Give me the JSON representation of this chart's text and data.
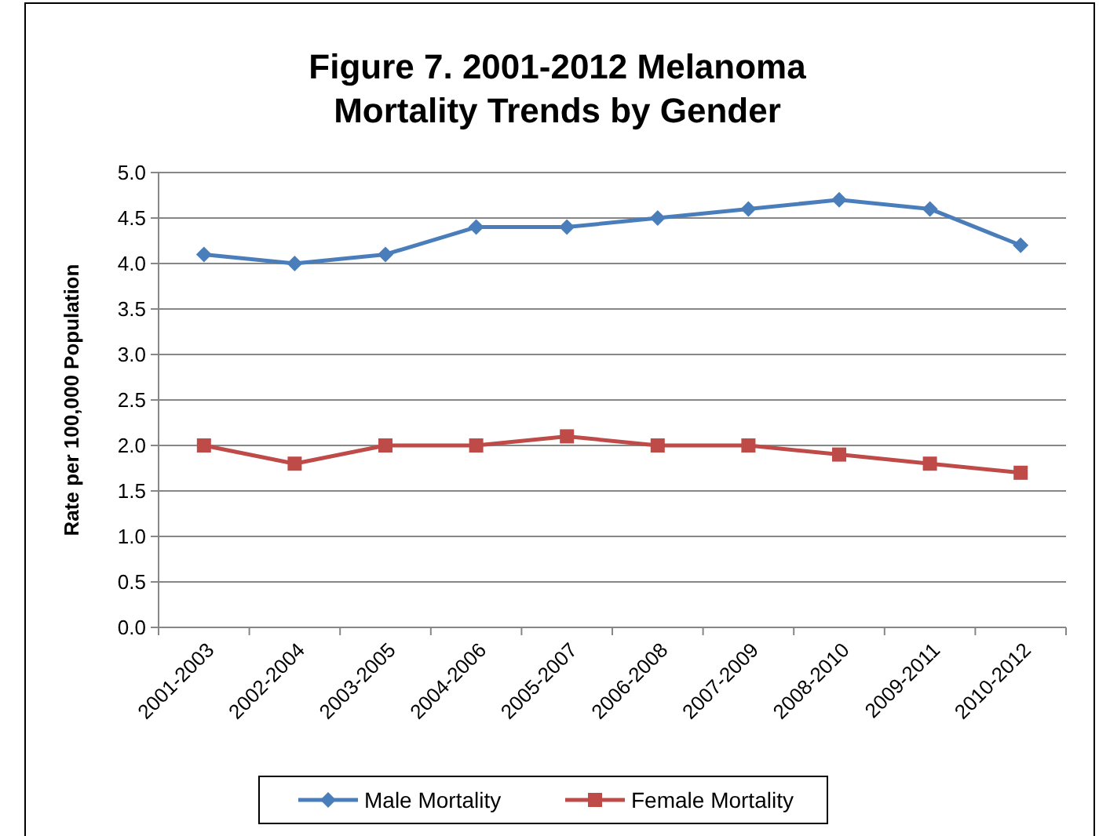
{
  "chart_data": {
    "type": "line",
    "title": "Figure 7.  2001-2012 Melanoma\nMortality Trends by Gender",
    "ylabel": "Rate per 100,000 Population",
    "categories": [
      "2001-2003",
      "2002-2004",
      "2003-2005",
      "2004-2006",
      "2005-2007",
      "2006-2008",
      "2007-2009",
      "2008-2010",
      "2009-2011",
      "2010-2012"
    ],
    "series": [
      {
        "name": "Male Mortality",
        "color": "#4a7ebb",
        "marker": "diamond",
        "values": [
          4.1,
          4.0,
          4.1,
          4.4,
          4.4,
          4.5,
          4.6,
          4.7,
          4.6,
          4.2
        ]
      },
      {
        "name": "Female Mortality",
        "color": "#be4b48",
        "marker": "square",
        "values": [
          2.0,
          1.8,
          2.0,
          2.0,
          2.1,
          2.0,
          2.0,
          1.9,
          1.8,
          1.7
        ]
      }
    ],
    "ylim": [
      0,
      5
    ],
    "yticks": [
      {
        "value": 0,
        "label": "0.0"
      },
      {
        "value": 0.5,
        "label": "0.5"
      },
      {
        "value": 1,
        "label": "1.0"
      },
      {
        "value": 1.5,
        "label": "1.5"
      },
      {
        "value": 2,
        "label": "2.0"
      },
      {
        "value": 2.5,
        "label": "2.5"
      },
      {
        "value": 3,
        "label": "3.0"
      },
      {
        "value": 3.5,
        "label": "3.5"
      },
      {
        "value": 4,
        "label": "4.0"
      },
      {
        "value": 4.5,
        "label": "4.5"
      },
      {
        "value": 5,
        "label": "5.0"
      }
    ],
    "grid": "y",
    "legend": "bottom",
    "line_style": "solid"
  }
}
